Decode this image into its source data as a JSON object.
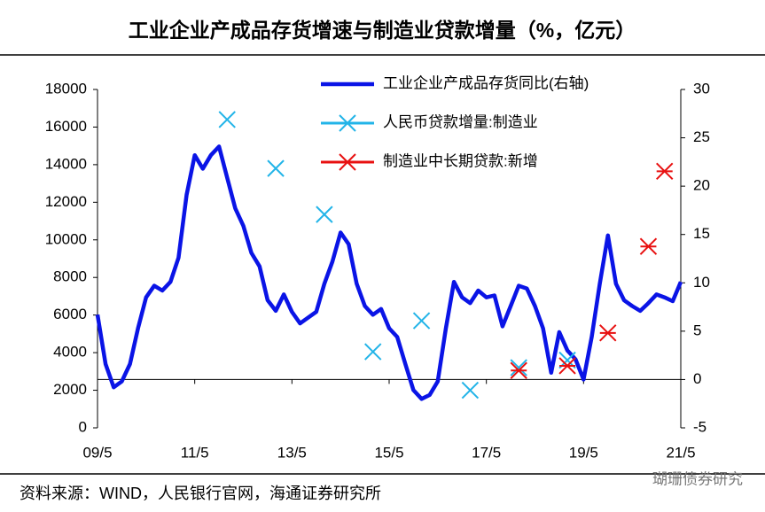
{
  "chart_data": {
    "type": "line",
    "title": "工业企业产成品存货增速与制造业贷款增量（%，亿元）",
    "categories": [
      "09/5",
      null,
      null,
      null,
      null,
      null,
      null,
      null,
      null,
      null,
      null,
      null,
      "11/5",
      null,
      null,
      null,
      null,
      null,
      null,
      null,
      null,
      null,
      null,
      null,
      "13/5",
      null,
      null,
      null,
      null,
      null,
      null,
      null,
      null,
      null,
      null,
      null,
      "15/5",
      null,
      null,
      null,
      null,
      null,
      null,
      null,
      null,
      null,
      null,
      null,
      "17/5",
      null,
      null,
      null,
      null,
      null,
      null,
      null,
      null,
      null,
      null,
      null,
      "19/5",
      null,
      null,
      null,
      null,
      null,
      null,
      null,
      null,
      null,
      null,
      null,
      "21/5"
    ],
    "series": [
      {
        "name": "工业企业产成品存货同比(右轴)",
        "type": "line",
        "color": "#0a14e6",
        "axis": "y2",
        "values": [
          6.7,
          1.6,
          -0.8,
          -0.2,
          1.6,
          5.3,
          8.5,
          9.7,
          9.2,
          10.1,
          12.6,
          19.1,
          23.2,
          21.8,
          23.2,
          24.1,
          20.9,
          17.7,
          15.9,
          13.1,
          11.7,
          8.2,
          7.1,
          8.8,
          7.0,
          5.8,
          6.4,
          7.0,
          9.9,
          12.2,
          15.2,
          14.0,
          9.9,
          7.6,
          6.7,
          7.3,
          5.3,
          4.4,
          1.6,
          -1.1,
          -2.0,
          -1.6,
          -0.2,
          5.3,
          10.1,
          8.5,
          7.9,
          9.2,
          8.5,
          8.7,
          5.5,
          7.6,
          9.7,
          9.4,
          7.6,
          5.3,
          0.7,
          4.9,
          3.0,
          2.1,
          0,
          4.4,
          9.9,
          14.9,
          9.9,
          8.2,
          7.6,
          7.1,
          7.9,
          8.8,
          8.5,
          8.1,
          10.1
        ]
      },
      {
        "name": "人民币贷款增量:制造业",
        "type": "scatter",
        "marker": "x",
        "color": "#22b4e8",
        "values": [
          null,
          null,
          null,
          null,
          null,
          null,
          null,
          null,
          null,
          null,
          null,
          null,
          null,
          null,
          null,
          null,
          16400,
          null,
          null,
          null,
          null,
          null,
          13800,
          null,
          null,
          null,
          null,
          null,
          11350,
          null,
          null,
          null,
          null,
          null,
          4050,
          null,
          null,
          null,
          null,
          null,
          5700,
          null,
          null,
          null,
          null,
          null,
          2000,
          null,
          null,
          null,
          null,
          null,
          3200,
          null,
          null,
          null,
          null,
          null,
          3600,
          null,
          null,
          null,
          null,
          null,
          null,
          null,
          null,
          null,
          null,
          null,
          null,
          null,
          null
        ]
      },
      {
        "name": "制造业中长期贷款:新增",
        "type": "scatter",
        "marker": "star",
        "color": "#e81010",
        "values": [
          null,
          null,
          null,
          null,
          null,
          null,
          null,
          null,
          null,
          null,
          null,
          null,
          null,
          null,
          null,
          null,
          null,
          null,
          null,
          null,
          null,
          null,
          null,
          null,
          null,
          null,
          null,
          null,
          null,
          null,
          null,
          null,
          null,
          null,
          null,
          null,
          null,
          null,
          null,
          null,
          null,
          null,
          null,
          null,
          null,
          null,
          null,
          null,
          null,
          null,
          null,
          null,
          3050,
          null,
          null,
          null,
          null,
          null,
          3300,
          null,
          null,
          null,
          null,
          5050,
          null,
          null,
          null,
          null,
          9650,
          null,
          13650,
          null,
          null
        ]
      }
    ],
    "ylim": [
      0,
      18000
    ],
    "yticks": [
      0,
      2000,
      4000,
      6000,
      8000,
      10000,
      12000,
      14000,
      16000,
      18000
    ],
    "y2lim": [
      -5,
      30
    ],
    "y2ticks": [
      -5,
      0,
      5,
      10,
      15,
      20,
      25,
      30
    ],
    "legend": "upper right",
    "source": "资料来源：WIND，人民银行官网，海通证券研究所",
    "watermark": "瑚珊债券研究"
  }
}
